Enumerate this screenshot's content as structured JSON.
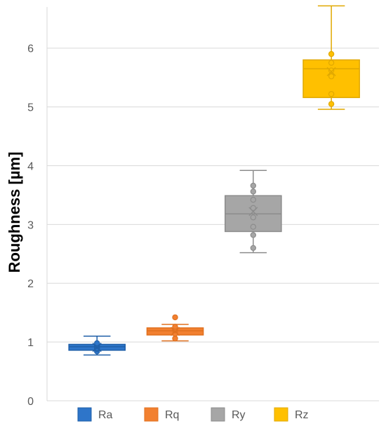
{
  "chart_data": {
    "type": "box",
    "ylabel": "Roughness [µm]",
    "xlabel": "",
    "ylim": [
      0,
      6.7
    ],
    "yticks": [
      0,
      1,
      2,
      3,
      4,
      5,
      6
    ],
    "grid": true,
    "legend_position": "bottom",
    "series": [
      {
        "name": "Ra",
        "color": "#2E75C9",
        "stroke": "#1F5FA8",
        "min": 0.78,
        "q1": 0.86,
        "median": 0.92,
        "q3": 0.96,
        "max": 1.1,
        "mean": 0.91,
        "points": [
          0.84,
          0.88,
          0.9,
          0.93,
          0.95,
          0.98
        ]
      },
      {
        "name": "Rq",
        "color": "#F28030",
        "stroke": "#E0701F",
        "min": 1.02,
        "q1": 1.12,
        "median": 1.19,
        "q3": 1.24,
        "max": 1.3,
        "mean": 1.18,
        "points": [
          1.06,
          1.14,
          1.2,
          1.22,
          1.26,
          1.42
        ]
      },
      {
        "name": "Ry",
        "color": "#A6A6A6",
        "stroke": "#8C8C8C",
        "min": 2.52,
        "q1": 2.88,
        "median": 3.18,
        "q3": 3.49,
        "max": 3.92,
        "mean": 3.22,
        "points": [
          2.6,
          2.82,
          2.96,
          3.12,
          3.28,
          3.42,
          3.56,
          3.66
        ]
      },
      {
        "name": "Rz",
        "color": "#FFC000",
        "stroke": "#E0A800",
        "min": 4.96,
        "q1": 5.16,
        "median": 5.65,
        "q3": 5.8,
        "max": 6.72,
        "mean": 5.6,
        "points": [
          5.05,
          5.22,
          5.52,
          5.62,
          5.75,
          5.9
        ]
      }
    ]
  }
}
